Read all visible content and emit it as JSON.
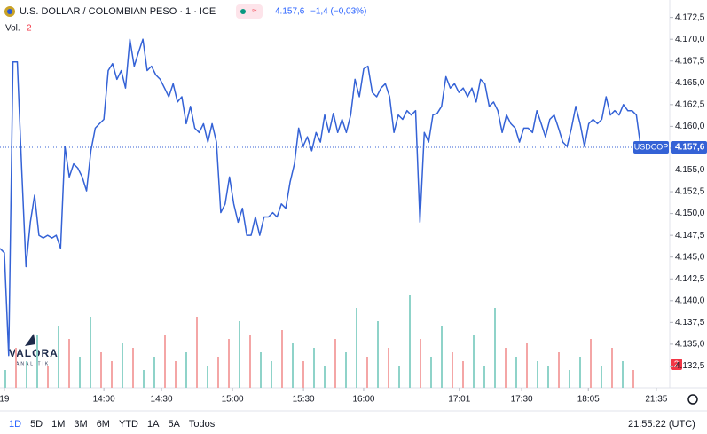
{
  "header": {
    "title": "U.S. DOLLAR / COLOMBIAN PESO · 1 · ICE",
    "price": "4.157,6",
    "change": "−1,4 (−0,03%)",
    "volume_label": "Vol.",
    "volume_value": "2",
    "symbol": "USDCOP",
    "volume_badge": "2"
  },
  "watermark": {
    "name": "VALORA",
    "sub": "ANALITIK"
  },
  "chart_data": {
    "type": "line",
    "series": [
      {
        "color": "#3462d6",
        "values": [
          4146.0,
          4145.5,
          4133.7,
          4167.4,
          4167.4,
          4155.2,
          4143.9,
          4149.0,
          4152.1,
          4147.5,
          4147.2,
          4147.5,
          4147.2,
          4147.5,
          4146.0,
          4157.7,
          4154.2,
          4155.7,
          4155.2,
          4154.2,
          4152.6,
          4157.2,
          4159.8,
          4160.3,
          4160.8,
          4166.4,
          4167.2,
          4165.4,
          4166.4,
          4164.4,
          4170.0,
          4166.9,
          4168.5,
          4170.0,
          4166.4,
          4166.9,
          4165.9,
          4165.4,
          4164.4,
          4163.4,
          4164.9,
          4162.8,
          4163.4,
          4160.3,
          4162.3,
          4159.8,
          4159.3,
          4160.3,
          4158.2,
          4160.3,
          4158.2,
          4150.1,
          4151.1,
          4154.2,
          4151.1,
          4149.0,
          4150.6,
          4147.5,
          4147.5,
          4149.6,
          4147.5,
          4149.6,
          4149.6,
          4150.1,
          4149.6,
          4151.1,
          4150.6,
          4153.6,
          4155.7,
          4159.8,
          4157.7,
          4158.8,
          4157.2,
          4159.3,
          4158.2,
          4161.3,
          4159.3,
          4161.5,
          4159.3,
          4160.8,
          4159.3,
          4161.3,
          4165.4,
          4163.4,
          4166.6,
          4166.9,
          4163.9,
          4163.4,
          4164.4,
          4164.9,
          4163.4,
          4159.3,
          4161.3,
          4160.8,
          4161.8,
          4161.3,
          4161.8,
          4149.0,
          4159.3,
          4158.2,
          4161.3,
          4161.5,
          4162.3,
          4165.7,
          4164.4,
          4164.9,
          4163.9,
          4164.4,
          4163.4,
          4164.4,
          4162.8,
          4165.4,
          4164.9,
          4162.3,
          4162.8,
          4161.8,
          4159.3,
          4161.3,
          4160.3,
          4159.8,
          4158.2,
          4159.8,
          4159.8,
          4159.3,
          4161.8,
          4160.3,
          4158.8,
          4160.8,
          4161.3,
          4159.8,
          4158.2,
          4157.7,
          4159.8,
          4162.3,
          4160.3,
          4157.7,
          4160.3,
          4160.8,
          4160.3,
          4160.8,
          4163.4,
          4161.3,
          4161.8,
          4161.3,
          4162.5,
          4161.8,
          4161.8,
          4161.3,
          4157.6
        ]
      }
    ],
    "ylim": [
      4130,
      4174.5
    ],
    "yticks": [
      {
        "value": 4132.5,
        "label": "4.132,5"
      },
      {
        "value": 4135,
        "label": "4.135,0"
      },
      {
        "value": 4137.5,
        "label": "4.137,5"
      },
      {
        "value": 4140,
        "label": "4.140,0"
      },
      {
        "value": 4142.5,
        "label": "4.142,5"
      },
      {
        "value": 4145,
        "label": "4.145,0"
      },
      {
        "value": 4147.5,
        "label": "4.147,5"
      },
      {
        "value": 4150,
        "label": "4.150,0"
      },
      {
        "value": 4152.5,
        "label": "4.152,5"
      },
      {
        "value": 4155,
        "label": "4.155,0"
      },
      {
        "value": 4157.5,
        "label": "4.157,5"
      },
      {
        "value": 4160,
        "label": "4.160,0"
      },
      {
        "value": 4162.5,
        "label": "4.162,5"
      },
      {
        "value": 4165,
        "label": "4.165,0"
      },
      {
        "value": 4167.5,
        "label": "4.167,5"
      },
      {
        "value": 4170,
        "label": "4.170,0"
      },
      {
        "value": 4172.5,
        "label": "4.172,5"
      }
    ],
    "xlim": [
      0,
      154.7
    ],
    "xticks": [
      {
        "value": 1,
        "label": "19"
      },
      {
        "value": 24,
        "label": "14:00"
      },
      {
        "value": 37.3,
        "label": "14:30"
      },
      {
        "value": 53.7,
        "label": "15:00"
      },
      {
        "value": 70.1,
        "label": "15:30"
      },
      {
        "value": 84,
        "label": "16:00"
      },
      {
        "value": 106.1,
        "label": "17:01"
      },
      {
        "value": 120.5,
        "label": "17:30"
      },
      {
        "value": 135.9,
        "label": "18:05"
      },
      {
        "value": 151.6,
        "label": "21:35"
      }
    ],
    "volume": {
      "up_color": "#8fd3c9",
      "down_color": "#f4a6a6",
      "vlim": [
        0,
        110
      ],
      "values": [
        20,
        45,
        30,
        60,
        25,
        70,
        55,
        35,
        80,
        40,
        30,
        50,
        45,
        20,
        35,
        60,
        30,
        40,
        80,
        25,
        35,
        55,
        75,
        60,
        40,
        30,
        65,
        50,
        30,
        45,
        25,
        55,
        40,
        90,
        35,
        75,
        45,
        25,
        105,
        55,
        35,
        70,
        40,
        30,
        60,
        25,
        90,
        45,
        35,
        50,
        30,
        25,
        40,
        20,
        35,
        55,
        25,
        45,
        30,
        20
      ],
      "up": [
        true,
        false,
        true,
        true,
        false,
        true,
        false,
        true,
        true,
        false,
        false,
        true,
        false,
        true,
        true,
        false,
        false,
        true,
        false,
        true,
        false,
        false,
        true,
        false,
        true,
        true,
        false,
        true,
        false,
        true,
        true,
        false,
        true,
        true,
        false,
        true,
        false,
        true,
        true,
        false,
        true,
        true,
        false,
        false,
        true,
        true,
        true,
        false,
        true,
        false,
        true,
        true,
        false,
        true,
        true,
        false,
        true,
        false,
        true,
        false
      ]
    },
    "timeframes": [
      "1D",
      "5D",
      "1M",
      "3M",
      "6M",
      "YTD",
      "1A",
      "5A",
      "Todos"
    ],
    "clock": "21:55:22 (UTC)"
  }
}
